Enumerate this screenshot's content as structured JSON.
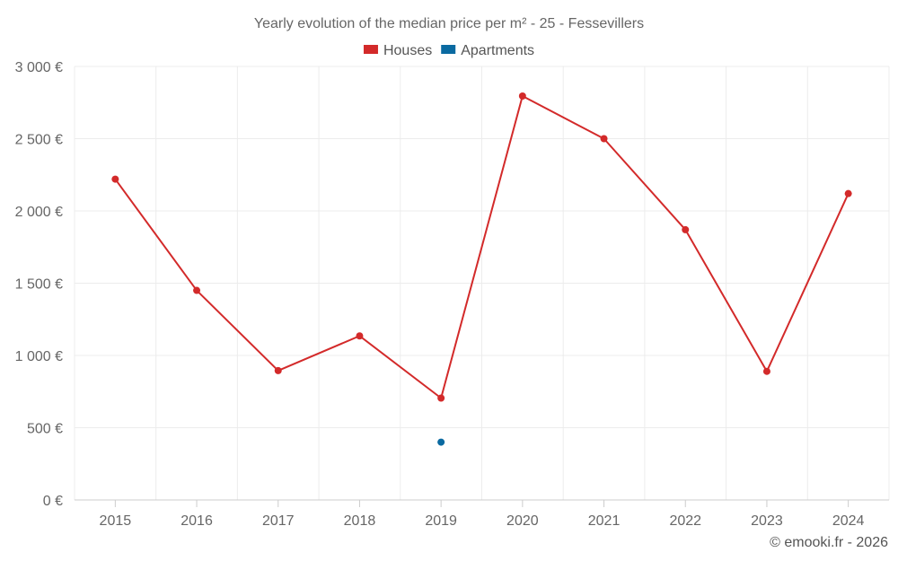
{
  "chart_data": {
    "type": "line",
    "title": "Yearly evolution of the median price per m² - 25 - Fessevillers",
    "categories": [
      "2015",
      "2016",
      "2017",
      "2018",
      "2019",
      "2020",
      "2021",
      "2022",
      "2023",
      "2024"
    ],
    "series": [
      {
        "name": "Houses",
        "color": "#d32a2a",
        "values": [
          2220,
          1450,
          895,
          1135,
          705,
          2795,
          2500,
          1870,
          890,
          2120
        ]
      },
      {
        "name": "Apartments",
        "color": "#0a6aa1",
        "values": [
          null,
          null,
          null,
          null,
          400,
          null,
          null,
          null,
          null,
          null
        ]
      }
    ],
    "ylim": [
      0,
      3000
    ],
    "yticks": [
      0,
      500,
      1000,
      1500,
      2000,
      2500,
      3000
    ],
    "ytick_labels": [
      "0 €",
      "500 €",
      "1 000 €",
      "1 500 €",
      "2 000 €",
      "2 500 €",
      "3 000 €"
    ],
    "xlabel": "",
    "ylabel": "",
    "grid": true,
    "legend_position": "top-center"
  },
  "credit": "© emooki.fr - 2026"
}
